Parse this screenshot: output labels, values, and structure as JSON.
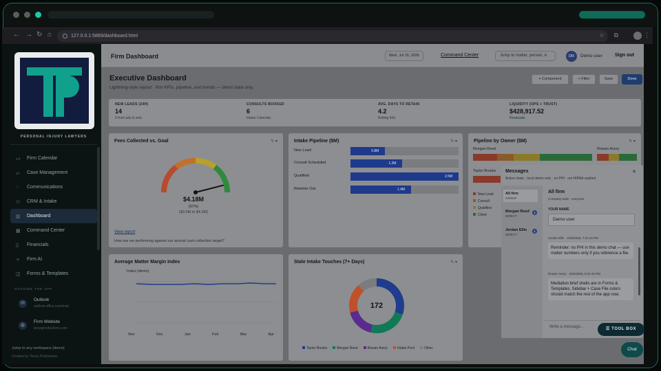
{
  "browser": {
    "url": "127.0.0.1:5889/dashboard.html"
  },
  "sidebar": {
    "tagline": "PERSONAL INJURY LAWYERS",
    "items": [
      {
        "label": "Firm Calendar",
        "icon": "calendar-icon"
      },
      {
        "label": "Case Management",
        "icon": "folder-icon"
      },
      {
        "label": "Communications",
        "icon": "chat-icon"
      },
      {
        "label": "CRM & Intake",
        "icon": "people-icon"
      },
      {
        "label": "Dashboard",
        "icon": "chart-icon",
        "active": true
      },
      {
        "label": "Command Center",
        "icon": "grid-icon"
      },
      {
        "label": "Financials",
        "icon": "document-icon"
      },
      {
        "label": "Firm AI",
        "icon": "sparkle-icon"
      },
      {
        "label": "Forms & Templates",
        "icon": "template-icon"
      }
    ],
    "outside_label": "OUTSIDE THE APP",
    "outlook": {
      "title": "Outlook",
      "sub": "outlook.office.com/mail"
    },
    "website": {
      "title": "Firm Website",
      "sub": "tanyaproductions.com"
    },
    "footer_jump": "Jump to any workspace (demo)",
    "footer_credit": "Created by Tanya Productions"
  },
  "header": {
    "title": "Firm Dashboard",
    "date": "Wed, Jul 15, 2026",
    "command_center": "Command Center",
    "jump_placeholder": "Jump to matter, person, e",
    "avatar": "DR",
    "user": "Demo user",
    "signout": "Sign out"
  },
  "page": {
    "title": "Executive Dashboard",
    "subtitle": "Lightning-style layout · firm KPIs, pipeline, and trends — demo data only.",
    "buttons": {
      "component": "+ Component",
      "filter": "+ Filter",
      "save": "Save",
      "done": "Done"
    }
  },
  "kpis": [
    {
      "label": "NEW LEADS (24H)",
      "value": "14",
      "sub": "9 from ads & web"
    },
    {
      "label": "CONSULTS BOOKED",
      "value": "6",
      "sub": "Intake Calendar"
    },
    {
      "label": "AVG. DAYS TO RETAIN",
      "value": "4.2",
      "sub": "Rolling 90d"
    },
    {
      "label": "LIQUIDITY (OPS + TRUST)",
      "value": "$428,917.52",
      "sub": "Financials"
    }
  ],
  "fees": {
    "title": "Fees Collected vs. Goal",
    "value": "$4.18M",
    "pct": "(97%)",
    "range": "($3.0M to $4.3M)",
    "link": "View report",
    "question": "How are we performing against our annual cash collection target?",
    "gauge_fraction": 0.92
  },
  "intake": {
    "title": "Intake Pipeline ($M)",
    "rows": [
      {
        "label": "New Lead",
        "value": 0.8,
        "text": "0.8M"
      },
      {
        "label": "Consult Scheduled",
        "value": 1.2,
        "text": "1.2M"
      },
      {
        "label": "Qualified",
        "value": 2.5,
        "text": "2.5M"
      },
      {
        "label": "Retainer Out",
        "value": 1.4,
        "text": "1.4M"
      }
    ],
    "max": 2.5
  },
  "owner": {
    "title": "Pipeline by Owner ($M)",
    "owners": [
      "Morgan Reed",
      "Rowan Avery",
      "Taylor Brooks"
    ],
    "legend": [
      "New Lead",
      "Consult",
      "Qualified",
      "Client"
    ]
  },
  "margin": {
    "title": "Average Matter Margin Index",
    "ylabel": "Index (demo)",
    "months": [
      "Nov",
      "Dec",
      "Jan",
      "Feb",
      "Mar",
      "Apr"
    ]
  },
  "stale": {
    "title": "Stale Intake Touches (7+ Days)",
    "total": "172",
    "legend": [
      "Taylor Brooks",
      "Morgan Reed",
      "Rowan Avery",
      "Intake Pool",
      "Other"
    ],
    "colors": [
      "#1f3c8e",
      "#0f7a55",
      "#5b2a8e",
      "#c0502a",
      "#7a7c80"
    ],
    "values": [
      52,
      40,
      30,
      30,
      20
    ]
  },
  "messages": {
    "title": "Messages",
    "sub": "Active chats · local demo only · no PHI · not HIPAA-audited",
    "convs": [
      {
        "name": "All firm",
        "sub": "GROUP"
      },
      {
        "name": "Morgan Reed",
        "sub": "DIRECT",
        "badge": "1"
      },
      {
        "name": "Jordan Ellis",
        "sub": "DIRECT",
        "badge": "1"
      }
    ],
    "thread_title": "All firm",
    "thread_sub": "Company-wide · everyone",
    "your_name_label": "YOUR NAME",
    "your_name": "Demo user",
    "msgs": [
      {
        "meta": "Jordan Ellis · 4/29/2026, 7:47:44 PM",
        "text": "Reminder: no PHI in this demo chat — use matter numbers only if you reference a file."
      },
      {
        "meta": "Rowan Avery · 4/29/2026, 8:21:44 PM",
        "text": "Mediation brief shells are in Forms & Templates. Sidebar + Case File colors should match the rest of the app now."
      }
    ],
    "write_placeholder": "Write a message..."
  },
  "toolbox": "TOOL BOX",
  "chat": "Chat"
}
